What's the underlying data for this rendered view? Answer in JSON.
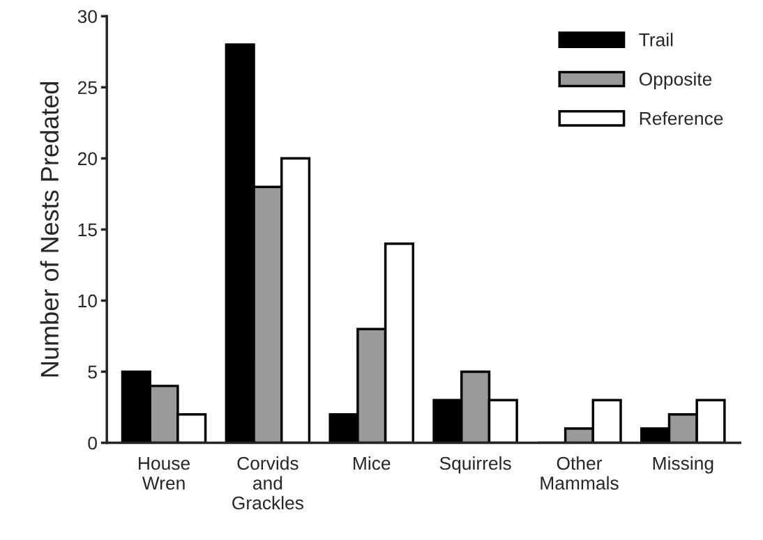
{
  "chart_data": {
    "type": "bar",
    "ylabel": "Number of Nests Predated",
    "categories": [
      "House\nWren",
      "Corvids\nand\nGrackles",
      "Mice",
      "Squirrels",
      "Other\nMammals",
      "Missing"
    ],
    "series": [
      {
        "name": "Trail",
        "color": "#000000",
        "values": [
          5,
          28,
          2,
          3,
          0,
          1
        ]
      },
      {
        "name": "Opposite",
        "color": "#9a9a9a",
        "values": [
          4,
          18,
          8,
          5,
          1,
          2
        ]
      },
      {
        "name": "Reference",
        "color": "#ffffff",
        "values": [
          2,
          20,
          14,
          3,
          3,
          3
        ]
      }
    ],
    "ylim": [
      0,
      30
    ],
    "yticks": [
      0,
      5,
      10,
      15,
      20,
      25,
      30
    ],
    "grid": false,
    "legend": "top right"
  }
}
